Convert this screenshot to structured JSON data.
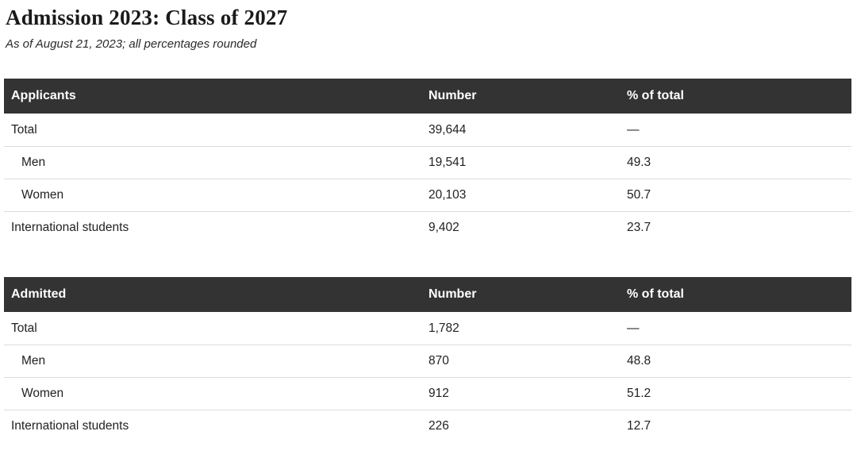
{
  "title": "Admission 2023: Class of 2027",
  "subtitle": "As of August 21, 2023; all percentages rounded",
  "colors": {
    "header_bg": "#333333",
    "header_text": "#ffffff",
    "body_text": "#222222",
    "title_text": "#1a1a1a",
    "divider": "#dcdcdc",
    "background": "#ffffff"
  },
  "chart_data": [
    {
      "type": "table",
      "title": "Applicants",
      "columns": [
        "Applicants",
        "Number",
        "% of total"
      ],
      "rows": [
        {
          "label": "Total",
          "indented": false,
          "number": "39,644",
          "percent": "—"
        },
        {
          "label": "Men",
          "indented": true,
          "number": "19,541",
          "percent": "49.3"
        },
        {
          "label": "Women",
          "indented": true,
          "number": "20,103",
          "percent": "50.7"
        },
        {
          "label": "International students",
          "indented": false,
          "number": "9,402",
          "percent": "23.7"
        }
      ]
    },
    {
      "type": "table",
      "title": "Admitted",
      "columns": [
        "Admitted",
        "Number",
        "% of total"
      ],
      "rows": [
        {
          "label": "Total",
          "indented": false,
          "number": "1,782",
          "percent": "—"
        },
        {
          "label": "Men",
          "indented": true,
          "number": "870",
          "percent": "48.8"
        },
        {
          "label": "Women",
          "indented": true,
          "number": "912",
          "percent": "51.2"
        },
        {
          "label": "International students",
          "indented": false,
          "number": "226",
          "percent": "12.7"
        }
      ]
    }
  ]
}
